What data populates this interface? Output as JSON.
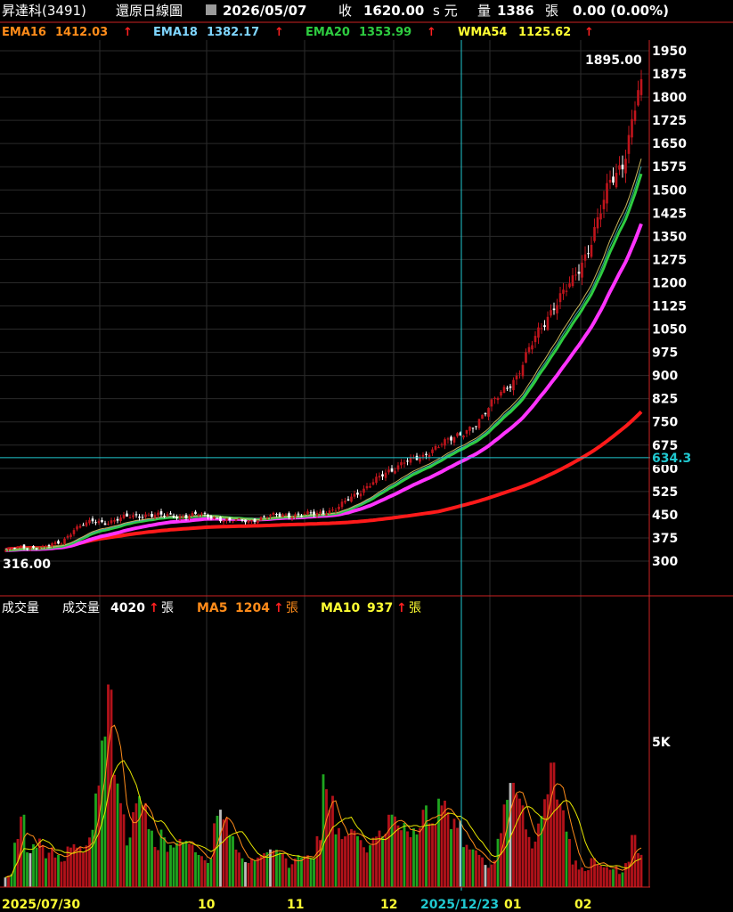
{
  "header": {
    "stock": "昇達科(3491)",
    "mode": "還原日線圖",
    "date": "2026/05/07",
    "close_label": "收",
    "close": "1620.00",
    "close_suffix": "s 元",
    "volume_label": "量",
    "volume": "1386",
    "volume_unit": "張",
    "change": "0.00 (0.00%)"
  },
  "legend": [
    {
      "label": "EMA16",
      "value": "1412.03",
      "color": "#ff8c1a"
    },
    {
      "label": "EMA18",
      "value": "1382.17",
      "color": "#7fd6ff"
    },
    {
      "label": "EMA20",
      "value": "1353.99",
      "color": "#2ecc40"
    },
    {
      "label": "WMA54",
      "value": "1125.62",
      "color": "#ffff33"
    }
  ],
  "volume_legend": {
    "panel_label": "成交量",
    "items": [
      {
        "label": "成交量",
        "value": "4020",
        "unit": "張",
        "color": "#ffffff"
      },
      {
        "label": "MA5",
        "value": "1204",
        "unit": "張",
        "color": "#ff8c1a"
      },
      {
        "label": "MA10",
        "value": "937",
        "unit": "張",
        "color": "#ffff33"
      }
    ]
  },
  "colors": {
    "up": "#c0141c",
    "down": "#ffffff",
    "vol_up": "#b3121a",
    "vol_down": "#1fa51f",
    "vol_flat": "#bdbdbd",
    "ema16": "#c8b45a",
    "ema18": "#3aa5a5",
    "ema20": "#2ecc40",
    "wma54": "#ff33ff",
    "long_ma": "#ff1a1a",
    "crosshair": "#20c8d0"
  },
  "chart_data": {
    "type": "candlestick",
    "ylim": [
      250,
      1960
    ],
    "price_ticks": [
      "1950",
      "1875",
      "1800",
      "1725",
      "1650",
      "1575",
      "1500",
      "1425",
      "1350",
      "1275",
      "1200",
      "1125",
      "1050",
      "975",
      "900",
      "825",
      "750",
      "675",
      "600",
      "525",
      "450",
      "375",
      "300"
    ],
    "x_ticks": [
      "2025/07/30",
      "10",
      "11",
      "12",
      "2025/12/23",
      "01",
      "02"
    ],
    "high_label": "1895.00",
    "low_label": "316.00",
    "crosshair_price": "634.3",
    "volume_tick": "5K",
    "vol_max": 7000,
    "anchors": [
      [
        0,
        335
      ],
      [
        5,
        345
      ],
      [
        12,
        345
      ],
      [
        18,
        360
      ],
      [
        22,
        405
      ],
      [
        28,
        428
      ],
      [
        32,
        425
      ],
      [
        38,
        440
      ],
      [
        45,
        450
      ],
      [
        55,
        445
      ],
      [
        62,
        450
      ],
      [
        68,
        440
      ],
      [
        72,
        430
      ],
      [
        78,
        430
      ],
      [
        84,
        445
      ],
      [
        92,
        450
      ],
      [
        100,
        452
      ],
      [
        106,
        470
      ],
      [
        112,
        510
      ],
      [
        118,
        560
      ],
      [
        124,
        590
      ],
      [
        128,
        630
      ],
      [
        134,
        630
      ],
      [
        140,
        690
      ],
      [
        146,
        700
      ],
      [
        152,
        760
      ],
      [
        158,
        830
      ],
      [
        164,
        900
      ],
      [
        170,
        1020
      ],
      [
        176,
        1130
      ],
      [
        182,
        1200
      ],
      [
        186,
        1290
      ],
      [
        190,
        1400
      ],
      [
        194,
        1520
      ],
      [
        198,
        1590
      ],
      [
        201,
        1720
      ],
      [
        203,
        1820
      ]
    ],
    "volume_seed": [
      600,
      1800,
      2500,
      1200,
      1600,
      2200,
      1800,
      1200,
      900,
      1400,
      1600,
      1800,
      2600,
      3800,
      5200,
      7000,
      4200,
      3800,
      2600,
      3400,
      2900,
      2000,
      1500,
      2600,
      2200,
      1800,
      1600,
      1500,
      1300,
      1400,
      1500,
      2900,
      2400,
      1800,
      1400,
      1300,
      1500,
      1200,
      1200,
      1300,
      1400,
      1500,
      1200,
      1300,
      1100,
      1000,
      1900,
      5100,
      4800,
      2400,
      1800,
      2000,
      1900,
      1800,
      2600,
      2300,
      1900,
      2500,
      2300,
      2900,
      3100,
      2400,
      2900,
      2200,
      3300,
      3900,
      3600,
      2700,
      1500,
      1300,
      1200,
      1000,
      1400,
      2200,
      3100,
      3600,
      3300,
      2600,
      2400,
      2900,
      3300,
      4300,
      3100,
      2500,
      1400,
      800,
      600,
      1000,
      800,
      900,
      1100,
      600,
      900,
      1800,
      1200
    ]
  }
}
